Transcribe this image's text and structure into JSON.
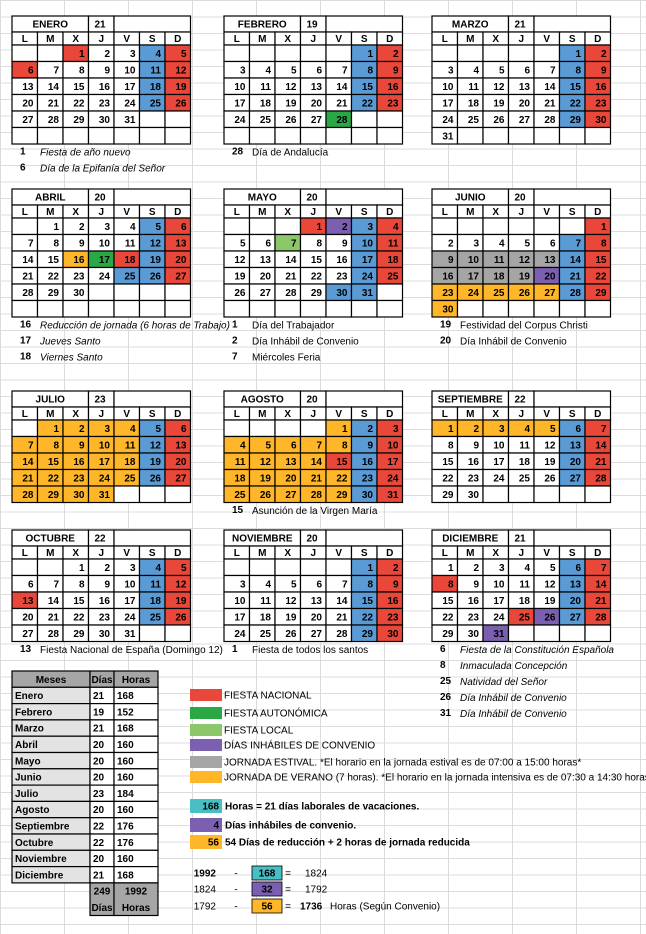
{
  "palette": {
    "r": "#e8473a",
    "b": "#5b9bd5",
    "o": "#ffb729",
    "g": "#2aa845",
    "l": "#8cc86a",
    "p": "#7b5fb0",
    "a": "#a5a5a5"
  },
  "weekdays": [
    "L",
    "M",
    "X",
    "J",
    "V",
    "S",
    "D"
  ],
  "months": [
    {
      "name": "ENERO",
      "days": 21,
      "weeks": [
        [
          null,
          null,
          1,
          2,
          3,
          4,
          5
        ],
        [
          6,
          7,
          8,
          9,
          10,
          11,
          12
        ],
        [
          13,
          14,
          15,
          16,
          17,
          18,
          19
        ],
        [
          20,
          21,
          22,
          23,
          24,
          25,
          26
        ],
        [
          27,
          28,
          29,
          30,
          31,
          null,
          null
        ]
      ],
      "fills": [
        "..r..br",
        "r....br",
        ".....br",
        ".....br",
        "......."
      ],
      "notes": [
        {
          "day": 1,
          "text": "Fiesta de año nuevo"
        },
        {
          "day": 6,
          "text": "Día de la Epifanía del Señor"
        }
      ]
    },
    {
      "name": "FEBRERO",
      "days": 19,
      "weeks": [
        [
          null,
          null,
          null,
          null,
          null,
          1,
          2
        ],
        [
          3,
          4,
          5,
          6,
          7,
          8,
          9
        ],
        [
          10,
          11,
          12,
          13,
          14,
          15,
          16
        ],
        [
          17,
          18,
          19,
          20,
          21,
          22,
          23
        ],
        [
          24,
          25,
          26,
          27,
          28,
          null,
          null
        ]
      ],
      "fills": [
        ".....br",
        ".....br",
        ".....br",
        ".....br",
        "....g.."
      ],
      "notes": [
        {
          "day": 28,
          "text": "Día de Andalucía"
        }
      ]
    },
    {
      "name": "MARZO",
      "days": 21,
      "weeks": [
        [
          null,
          null,
          null,
          null,
          null,
          1,
          2
        ],
        [
          3,
          4,
          5,
          6,
          7,
          8,
          9
        ],
        [
          10,
          11,
          12,
          13,
          14,
          15,
          16
        ],
        [
          17,
          18,
          19,
          20,
          21,
          22,
          23
        ],
        [
          24,
          25,
          26,
          27,
          28,
          29,
          30
        ],
        [
          31,
          null,
          null,
          null,
          null,
          null,
          null
        ]
      ],
      "fills": [
        ".....br",
        ".....br",
        ".....br",
        ".....br",
        ".....br",
        "......."
      ],
      "notes": []
    },
    {
      "name": "ABRIL",
      "days": 20,
      "weeks": [
        [
          null,
          1,
          2,
          3,
          4,
          5,
          6
        ],
        [
          7,
          8,
          9,
          10,
          11,
          12,
          13
        ],
        [
          14,
          15,
          16,
          17,
          18,
          19,
          20
        ],
        [
          21,
          22,
          23,
          24,
          25,
          26,
          27
        ],
        [
          28,
          29,
          30,
          null,
          null,
          null,
          null
        ]
      ],
      "fills": [
        ".....br",
        ".....br",
        "..ogrbr",
        "....bbr",
        "......."
      ],
      "notes": [
        {
          "day": 16,
          "text": "Reducción de jornada (6 horas de Trabajo)"
        },
        {
          "day": 17,
          "text": "Jueves Santo"
        },
        {
          "day": 18,
          "text": "Viernes Santo"
        }
      ]
    },
    {
      "name": "MAYO",
      "days": 20,
      "weeks": [
        [
          null,
          null,
          null,
          1,
          2,
          3,
          4
        ],
        [
          5,
          6,
          7,
          8,
          9,
          10,
          11
        ],
        [
          12,
          13,
          14,
          15,
          16,
          17,
          18
        ],
        [
          19,
          20,
          21,
          22,
          23,
          24,
          25
        ],
        [
          26,
          27,
          28,
          29,
          30,
          31,
          null
        ]
      ],
      "fills": [
        "...rpbr",
        "..l..br",
        ".....br",
        ".....br",
        "....bb."
      ],
      "notes": [
        {
          "day": 1,
          "text": "Día del Trabajador"
        },
        {
          "day": 2,
          "text": "Día Inhábil de Convenio"
        },
        {
          "day": 7,
          "text": "Miércoles Feria"
        }
      ]
    },
    {
      "name": "JUNIO",
      "days": 20,
      "weeks": [
        [
          null,
          null,
          null,
          null,
          null,
          null,
          1
        ],
        [
          2,
          3,
          4,
          5,
          6,
          7,
          8
        ],
        [
          9,
          10,
          11,
          12,
          13,
          14,
          15
        ],
        [
          16,
          17,
          18,
          19,
          20,
          21,
          22
        ],
        [
          23,
          24,
          25,
          26,
          27,
          28,
          29
        ],
        [
          30,
          null,
          null,
          null,
          null,
          null,
          null
        ]
      ],
      "fills": [
        "......r",
        ".....br",
        "aaaaabr",
        "aaaapbr",
        "ooooobr",
        "o......"
      ],
      "notes": [
        {
          "day": 19,
          "text": "Festividad del Corpus Christi"
        },
        {
          "day": 20,
          "text": "Día Inhábil de Convenio"
        }
      ]
    },
    {
      "name": "JULIO",
      "days": 23,
      "weeks": [
        [
          null,
          1,
          2,
          3,
          4,
          5,
          6
        ],
        [
          7,
          8,
          9,
          10,
          11,
          12,
          13
        ],
        [
          14,
          15,
          16,
          17,
          18,
          19,
          20
        ],
        [
          21,
          22,
          23,
          24,
          25,
          26,
          27
        ],
        [
          28,
          29,
          30,
          31,
          null,
          null,
          null
        ]
      ],
      "fills": [
        ".oooobr",
        "ooooobr",
        "ooooobr",
        "ooooobr",
        "oooo..."
      ],
      "notes": []
    },
    {
      "name": "AGOSTO",
      "days": 20,
      "weeks": [
        [
          null,
          null,
          null,
          null,
          1,
          2,
          3
        ],
        [
          4,
          5,
          6,
          7,
          8,
          9,
          10
        ],
        [
          11,
          12,
          13,
          14,
          15,
          16,
          17
        ],
        [
          18,
          19,
          20,
          21,
          22,
          23,
          24
        ],
        [
          25,
          26,
          27,
          28,
          29,
          30,
          31
        ]
      ],
      "fills": [
        "....obr",
        "ooooobr",
        "oooorbr",
        "ooooobr",
        "ooooobr"
      ],
      "notes": [
        {
          "day": 15,
          "text": "Asunción de la Virgen María"
        }
      ]
    },
    {
      "name": "SEPTIEMBRE",
      "days": 22,
      "weeks": [
        [
          1,
          2,
          3,
          4,
          5,
          6,
          7
        ],
        [
          8,
          9,
          10,
          11,
          12,
          13,
          14
        ],
        [
          15,
          16,
          17,
          18,
          19,
          20,
          21
        ],
        [
          22,
          23,
          24,
          25,
          26,
          27,
          28
        ],
        [
          29,
          30,
          null,
          null,
          null,
          null,
          null
        ]
      ],
      "fills": [
        "ooooobr",
        ".....br",
        ".....br",
        ".....br",
        "......."
      ],
      "notes": []
    },
    {
      "name": "OCTUBRE",
      "days": 22,
      "weeks": [
        [
          null,
          null,
          1,
          2,
          3,
          4,
          5
        ],
        [
          6,
          7,
          8,
          9,
          10,
          11,
          12
        ],
        [
          13,
          14,
          15,
          16,
          17,
          18,
          19
        ],
        [
          20,
          21,
          22,
          23,
          24,
          25,
          26
        ],
        [
          27,
          28,
          29,
          30,
          31,
          null,
          null
        ]
      ],
      "fills": [
        ".....br",
        ".....br",
        "r....br",
        ".....br",
        "......."
      ],
      "notes": [
        {
          "day": 13,
          "text": "Fiesta Nacional de España (Domingo 12)"
        }
      ]
    },
    {
      "name": "NOVIEMBRE",
      "days": 20,
      "weeks": [
        [
          null,
          null,
          null,
          null,
          null,
          1,
          2
        ],
        [
          3,
          4,
          5,
          6,
          7,
          8,
          9
        ],
        [
          10,
          11,
          12,
          13,
          14,
          15,
          16
        ],
        [
          17,
          18,
          19,
          20,
          21,
          22,
          23
        ],
        [
          24,
          25,
          26,
          27,
          28,
          29,
          30
        ]
      ],
      "fills": [
        ".....br",
        ".....br",
        ".....br",
        ".....br",
        ".....br"
      ],
      "notes": [
        {
          "day": 1,
          "text": "Fiesta de todos los santos"
        }
      ]
    },
    {
      "name": "DICIEMBRE",
      "days": 21,
      "weeks": [
        [
          1,
          2,
          3,
          4,
          5,
          6,
          7
        ],
        [
          8,
          9,
          10,
          11,
          12,
          13,
          14
        ],
        [
          15,
          16,
          17,
          18,
          19,
          20,
          21
        ],
        [
          22,
          23,
          24,
          25,
          26,
          27,
          28
        ],
        [
          29,
          30,
          31,
          null,
          null,
          null,
          null
        ]
      ],
      "fills": [
        ".....br",
        "r....br",
        ".....br",
        "...rpbr",
        "..p...."
      ],
      "notes": [
        {
          "day": 6,
          "text": "Fiesta de la Constitución Española"
        },
        {
          "day": 8,
          "text": "Inmaculada Concepción"
        },
        {
          "day": 25,
          "text": "Natividad del Señor"
        },
        {
          "day": 26,
          "text": "Día Inhábil de Convenio"
        },
        {
          "day": 31,
          "text": "Día Inhábil de Convenio"
        }
      ]
    }
  ],
  "table": {
    "header": [
      "Meses",
      "Días",
      "Horas"
    ],
    "rows": [
      [
        "Enero",
        21,
        168
      ],
      [
        "Febrero",
        19,
        152
      ],
      [
        "Marzo",
        21,
        168
      ],
      [
        "Abril",
        20,
        160
      ],
      [
        "Mayo",
        20,
        160
      ],
      [
        "Junio",
        20,
        160
      ],
      [
        "Julio",
        23,
        184
      ],
      [
        "Agosto",
        20,
        160
      ],
      [
        "Septiembre",
        22,
        176
      ],
      [
        "Octubre",
        22,
        176
      ],
      [
        "Noviembre",
        20,
        160
      ],
      [
        "Diciembre",
        21,
        168
      ]
    ],
    "totals": [
      249,
      1992
    ],
    "totals_labels": [
      "Días",
      "Horas"
    ]
  },
  "legend": [
    {
      "color": "#e8473a",
      "text": "FIESTA NACIONAL"
    },
    {
      "color": "#2aa845",
      "text": "FIESTA AUTONÓMICA"
    },
    {
      "color": "#8cc86a",
      "text": "FIESTA LOCAL"
    },
    {
      "color": "#7b5fb0",
      "text": "DÍAS INHÁBILES DE CONVENIO"
    },
    {
      "color": "#a5a5a5",
      "text": "JORNADA ESTIVAL. *El horario en la jornada estival es de 07:00 a 15:00 horas*"
    },
    {
      "color": "#ffb729",
      "text": "JORNADA DE VERANO (7 horas).  *El horario en la jornada intensiva es de 07:30 a 14:30 horas*"
    }
  ],
  "summary": [
    {
      "value": 168,
      "color": "#48bfc4",
      "text": "Horas = 21 días laborales de vacaciones."
    },
    {
      "value": 4,
      "color": "#7b5fb0",
      "text": "Días inhábiles de convenio."
    },
    {
      "value": 56,
      "color": "#ffb729",
      "text": "54 Días de reducción + 2 horas de jornada reducida"
    }
  ],
  "calc": [
    {
      "a": 1992,
      "op": "-",
      "b": 168,
      "color": "#48bfc4",
      "eq": "=",
      "r": 1824
    },
    {
      "a": 1824,
      "op": "-",
      "b": 32,
      "color": "#7b5fb0",
      "eq": "=",
      "r": 1792
    },
    {
      "a": 1792,
      "op": "-",
      "b": 56,
      "color": "#ffb729",
      "eq": "=",
      "r": 1736,
      "note": "Horas (Según Convenio)"
    }
  ]
}
